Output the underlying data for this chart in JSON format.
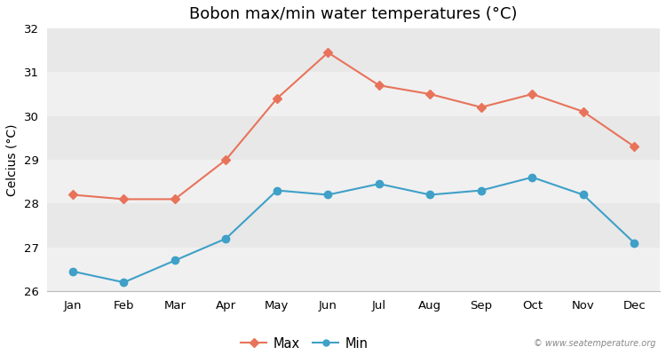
{
  "title": "Bobon max/min water temperatures (°C)",
  "ylabel": "Celcius (°C)",
  "months": [
    "Jan",
    "Feb",
    "Mar",
    "Apr",
    "May",
    "Jun",
    "Jul",
    "Aug",
    "Sep",
    "Oct",
    "Nov",
    "Dec"
  ],
  "max_temps": [
    28.2,
    28.1,
    28.1,
    29.0,
    30.4,
    31.45,
    30.7,
    30.5,
    30.2,
    30.5,
    30.1,
    29.3
  ],
  "min_temps": [
    26.45,
    26.2,
    26.7,
    27.2,
    28.3,
    28.2,
    28.45,
    28.2,
    28.3,
    28.6,
    28.2,
    27.1
  ],
  "max_color": "#e8735a",
  "min_color": "#3fa0c8",
  "bg_color": "#ffffff",
  "band_colors": [
    "#f0f0f0",
    "#e8e8e8"
  ],
  "ylim": [
    26,
    32
  ],
  "yticks": [
    26,
    27,
    28,
    29,
    30,
    31,
    32
  ],
  "watermark": "© www.seatemperature.org",
  "title_fontsize": 13,
  "axis_label_fontsize": 10,
  "tick_fontsize": 9.5,
  "legend_labels": [
    "Max",
    "Min"
  ]
}
